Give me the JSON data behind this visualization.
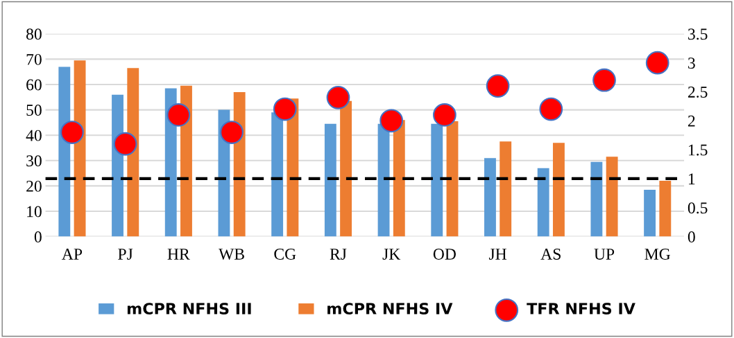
{
  "chart_data": {
    "type": "bar",
    "categories": [
      "AP",
      "PJ",
      "HR",
      "WB",
      "CG",
      "RJ",
      "JK",
      "OD",
      "JH",
      "AS",
      "UP",
      "MG"
    ],
    "series": [
      {
        "name": "mCPR NFHS III",
        "color": "#5b9bd5",
        "values": [
          67,
          56,
          58.5,
          50,
          49,
          44.5,
          44.5,
          44.5,
          31,
          27,
          29.5,
          18.5
        ]
      },
      {
        "name": "mCPR NFHS IV",
        "color": "#ed7d31",
        "values": [
          69.5,
          66.5,
          59.5,
          57,
          54.5,
          53.5,
          46,
          45.5,
          37.5,
          37,
          31.5,
          22
        ]
      },
      {
        "name": "TFR NFHS IV",
        "type": "scatter",
        "axis": "y2",
        "color": "#ff0000",
        "values": [
          1.8,
          1.6,
          2.1,
          1.8,
          2.2,
          2.4,
          2.0,
          2.1,
          2.6,
          2.2,
          2.7,
          3.0
        ]
      }
    ],
    "ylim": [
      0,
      80
    ],
    "yticks": [
      0,
      10,
      20,
      30,
      40,
      50,
      60,
      70,
      80
    ],
    "y2lim": [
      0,
      3.5
    ],
    "y2ticks": [
      0,
      0.5,
      1,
      1.5,
      2,
      2.5,
      3,
      3.5
    ],
    "ref_lines": [
      {
        "axis": "y2",
        "value": 1,
        "color": "#000000",
        "line_style": "dashed"
      }
    ],
    "grid": "y",
    "legend": "bottom",
    "marker": "circle"
  }
}
